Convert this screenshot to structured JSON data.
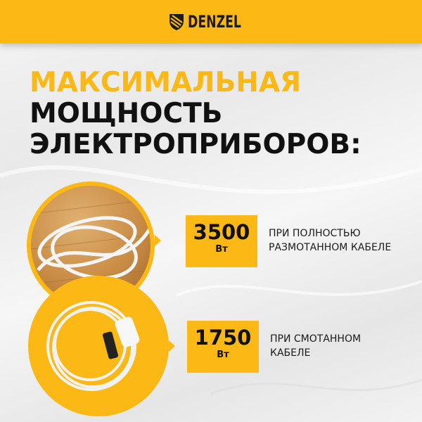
{
  "brand": {
    "logo_text": "DENZEL",
    "accent_color": "#fcb814"
  },
  "title": {
    "line1": "МАКСИМАЛЬНАЯ",
    "line2": "МОЩНОСТЬ",
    "line3": "ЭЛЕКТРОПРИБОРОВ:"
  },
  "specs": [
    {
      "value": "3500",
      "unit": "Вт",
      "line1": "ПРИ ПОЛНОСТЬЮ",
      "line2": "РАЗМОТАННОМ КАБЕЛЕ"
    },
    {
      "value": "1750",
      "unit": "Вт",
      "line1": "ПРИ СМОТАННОМ",
      "line2": "КАБЕЛЕ"
    }
  ]
}
